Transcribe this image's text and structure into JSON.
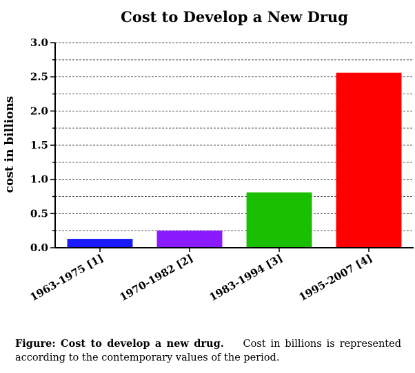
{
  "chart_data": {
    "type": "bar",
    "title": "Cost to Develop a New Drug",
    "xlabel": "",
    "ylabel": "cost in billions",
    "ylim": [
      0,
      3.0
    ],
    "yticks": [
      "0.0",
      "0.5",
      "1.0",
      "1.5",
      "2.0",
      "2.5",
      "3.0"
    ],
    "grid": "dashed horizontal at 0.25 intervals",
    "categories": [
      "1963-1975 [1]",
      "1970-1982 [2]",
      "1983-1994 [3]",
      "1995-2007 [4]"
    ],
    "values": [
      0.13,
      0.25,
      0.81,
      2.56
    ],
    "colors": [
      "#1a1aff",
      "#8c1aff",
      "#19bf00",
      "#ff0000"
    ]
  },
  "caption": {
    "bold": "Figure: Cost to develop a new drug.",
    "text": "Cost in billions is represented according to the contemporary values of the period."
  }
}
